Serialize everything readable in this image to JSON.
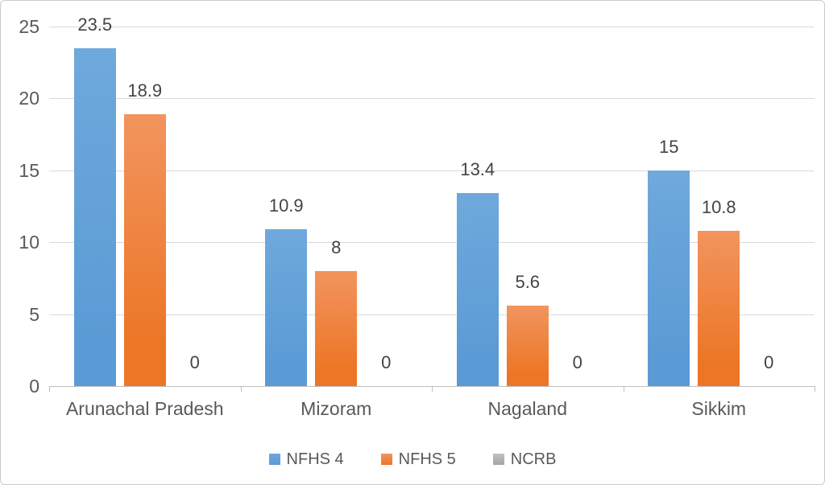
{
  "chart_data": {
    "type": "bar",
    "title": "",
    "xlabel": "",
    "ylabel": "",
    "categories": [
      "Arunachal Pradesh",
      "Mizoram",
      "Nagaland",
      "Sikkim"
    ],
    "series": [
      {
        "name": "NFHS 4",
        "color": "#5B9BD5",
        "color_light": "#6FA9DC",
        "values": [
          23.5,
          10.9,
          13.4,
          15
        ]
      },
      {
        "name": "NFHS 5",
        "color": "#EC7626",
        "color_light": "#F2945E",
        "values": [
          18.9,
          8,
          5.6,
          10.8
        ]
      },
      {
        "name": "NCRB",
        "color": "#A6A6A6",
        "color_light": "#C0C0C0",
        "values": [
          0,
          0,
          0,
          0
        ]
      }
    ],
    "data_labels": [
      [
        "23.5",
        "10.9",
        "13.4",
        "15"
      ],
      [
        "18.9",
        "8",
        "5.6",
        "10.8"
      ],
      [
        "0",
        "0",
        "0",
        "0"
      ]
    ],
    "ylim": [
      0,
      25
    ],
    "yticks": [
      "0",
      "5",
      "10",
      "15",
      "20",
      "25"
    ],
    "grid": true,
    "legend_position": "bottom",
    "colors": {
      "gridline": "#D9D9D9",
      "axis": "#BFBFBF",
      "tick_text": "#595959",
      "data_label": "#444444",
      "border": "#CBCBCB",
      "background": "#FFFFFF"
    }
  }
}
